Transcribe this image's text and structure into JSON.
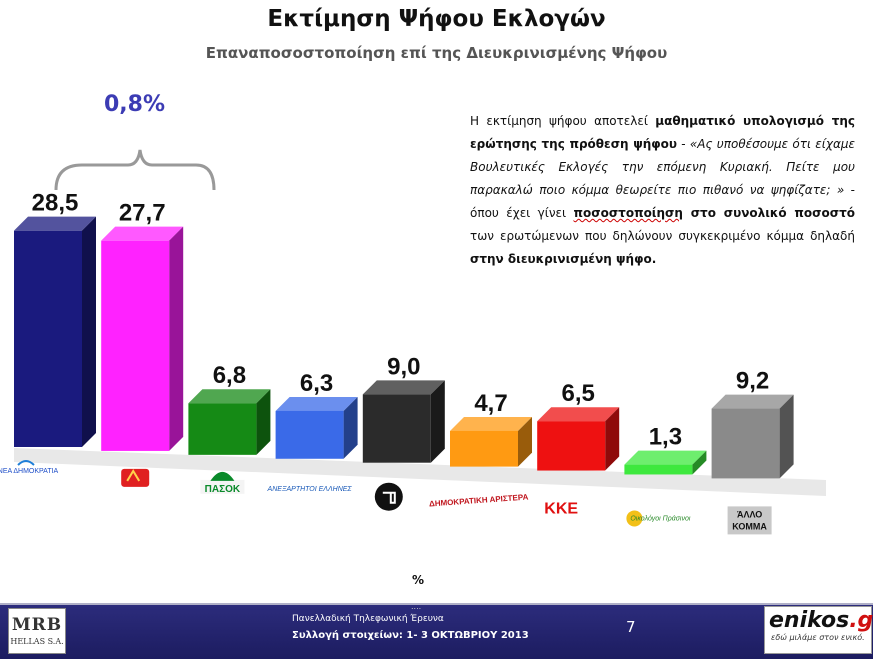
{
  "header": {
    "title": "Εκτίμηση Ψήφου Εκλογών",
    "subtitle": "Επαναποσοστοποίηση επί της Διευκρινισμένης Ψήφου"
  },
  "difference_label": "0,8%",
  "note": {
    "p1": "Η εκτίμηση ψήφου αποτελεί ",
    "p2": "μαθηματικό υπολογισμό της ερώτησης της πρόθεση ψήφου",
    "p3": " - ",
    "p4": "«Ας υποθέσουμε ότι είχαμε Βουλευτικές Εκλογές την επόμενη Κυριακή. Πείτε μου παρακαλώ ποιο κόμμα θεωρείτε πιο πιθανό να ψηφίζατε; »",
    "p5": " - όπου έχει γίνει ",
    "p6": "ποσοστοποίηση",
    "p7": " στο συνολικό ποσοστό",
    "p8": " των ερωτώμενων που δηλώνουν συγκεκριμένο κόμμα δηλαδή ",
    "p9": "στην διευκρινισμένη ψήφο."
  },
  "chart_data": {
    "type": "bar",
    "categories": [
      "ΝΕΑ ΔΗΜΟΚΡΑΤΙΑ",
      "",
      "ΠΑΣΟΚ",
      "ΑΝΕΞΑΡΤΗΤΟΙ ΕΛΛΗΝΕΣ",
      "",
      "ΔΗΜΟΚΡΑΤΙΚΗ ΑΡΙΣΤΕΡΑ",
      "ΚΚΕ",
      "Οικολόγοι Πράσινοι",
      "ΆΛΛΟ ΚΟΜΜΑ"
    ],
    "values": [
      28.5,
      27.7,
      6.8,
      6.3,
      9.0,
      4.7,
      6.5,
      1.3,
      9.2
    ],
    "value_labels": [
      "28,5",
      "27,7",
      "6,8",
      "6,3",
      "9,0",
      "4,7",
      "6,5",
      "1,3",
      "9,2"
    ],
    "colors": [
      "#1a1a7e",
      "#ff22ff",
      "#158a15",
      "#3a6ae8",
      "#2b2b2b",
      "#ff9a12",
      "#ee1111",
      "#3ee83e",
      "#8a8a8a"
    ],
    "xlabel": "%",
    "ylabel": "",
    "ylim": [
      0,
      30
    ],
    "grid": false
  },
  "footer": {
    "survey": "Πανελλαδική Τηλεφωνική Έρευνα",
    "dates": "Συλλογή στοιχείων: 1- 3 ΟΚΤΩΒΡΙΟΥ 2013",
    "dots": "....",
    "page": "7",
    "logo_left_1": "MRB",
    "logo_left_2": "HELLAS S.A.",
    "logo_right_1": "enikos",
    "logo_right_1b": ".gr",
    "logo_right_2": "εδώ μιλάμε στον ενικό."
  }
}
